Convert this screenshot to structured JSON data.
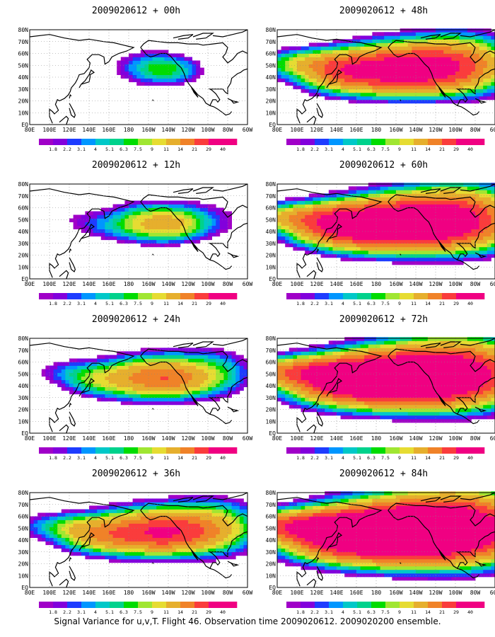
{
  "caption": "Signal Variance for u,v,T. Flight 46. Observation time 2009020612. 2009020200 ensemble.",
  "lat_labels": [
    "80N",
    "70N",
    "60N",
    "50N",
    "40N",
    "30N",
    "20N",
    "10N",
    "EQ"
  ],
  "lon_labels": [
    "80E",
    "100E",
    "120E",
    "140E",
    "160E",
    "180",
    "160W",
    "140W",
    "120W",
    "100W",
    "80W",
    "60W"
  ],
  "colorbar": {
    "labels": [
      "1.8",
      "2.2",
      "3.1",
      "4",
      "5.1",
      "6.3",
      "7.5",
      "9",
      "11",
      "14",
      "21",
      "29",
      "40"
    ],
    "colors": [
      "#a000c8",
      "#8200dc",
      "#1e3cff",
      "#0096ff",
      "#00c8c8",
      "#00d28c",
      "#00dc00",
      "#a0e632",
      "#e6dc32",
      "#e6af2d",
      "#f08228",
      "#fa3c3c",
      "#f00082",
      "#f00082"
    ]
  },
  "panels": [
    {
      "title": "2009020612 + 00h",
      "intensity": 0
    },
    {
      "title": "2009020612 + 12h",
      "intensity": 1
    },
    {
      "title": "2009020612 + 24h",
      "intensity": 2
    },
    {
      "title": "2009020612 + 36h",
      "intensity": 3
    },
    {
      "title": "2009020612 + 48h",
      "intensity": 4
    },
    {
      "title": "2009020612 + 60h",
      "intensity": 5
    },
    {
      "title": "2009020612 + 72h",
      "intensity": 6
    },
    {
      "title": "2009020612 + 84h",
      "intensity": 7
    }
  ]
}
